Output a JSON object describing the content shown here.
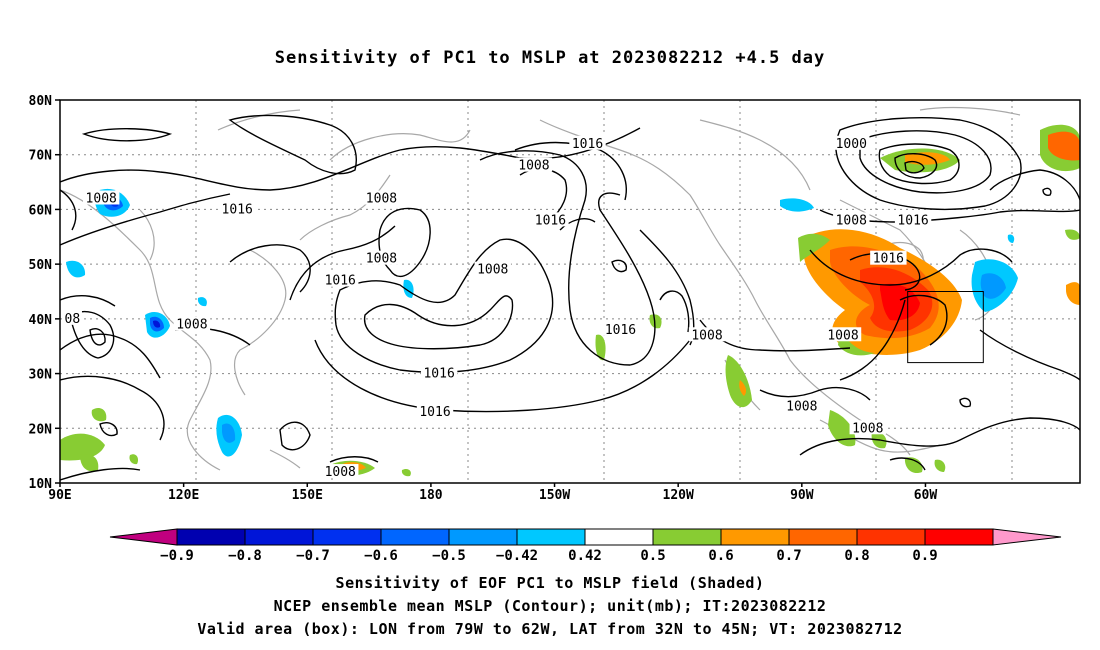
{
  "title": "Sensitivity of PC1 to MSLP at 2023082212 +4.5 day",
  "map": {
    "lat_labels": [
      "80N",
      "70N",
      "60N",
      "50N",
      "40N",
      "30N",
      "20N",
      "10N"
    ],
    "lon_labels": [
      "90E",
      "120E",
      "150E",
      "180",
      "150W",
      "120W",
      "90W",
      "60W"
    ],
    "valid_box": {
      "lon_min": -79,
      "lon_max": -62,
      "lat_min": 32,
      "lat_max": 45
    },
    "contour_labels": [
      {
        "text": "1016",
        "lon": -142,
        "lat": 72
      },
      {
        "text": "1008",
        "lon": -155,
        "lat": 68
      },
      {
        "text": "1000",
        "lon": -78,
        "lat": 72
      },
      {
        "text": "1008",
        "lon": 100,
        "lat": 62
      },
      {
        "text": "1016",
        "lon": 133,
        "lat": 60
      },
      {
        "text": "1008",
        "lon": 168,
        "lat": 62
      },
      {
        "text": "1016",
        "lon": -151,
        "lat": 58
      },
      {
        "text": "1008",
        "lon": -78,
        "lat": 58
      },
      {
        "text": "1016",
        "lon": -63,
        "lat": 58
      },
      {
        "text": "1016",
        "lon": -69,
        "lat": 51
      },
      {
        "text": "1008",
        "lon": 168,
        "lat": 51
      },
      {
        "text": "1008",
        "lon": -165,
        "lat": 49
      },
      {
        "text": "1016",
        "lon": 158,
        "lat": 47
      },
      {
        "text": "08",
        "lon": 93,
        "lat": 40
      },
      {
        "text": "1008",
        "lon": 122,
        "lat": 39
      },
      {
        "text": "1016",
        "lon": -134,
        "lat": 38
      },
      {
        "text": "1008",
        "lon": -113,
        "lat": 37
      },
      {
        "text": "1008",
        "lon": -80,
        "lat": 37
      },
      {
        "text": "1016",
        "lon": -178,
        "lat": 30
      },
      {
        "text": "1016",
        "lon": -179,
        "lat": 23
      },
      {
        "text": "1008",
        "lon": -90,
        "lat": 24
      },
      {
        "text": "1008",
        "lon": -74,
        "lat": 20
      },
      {
        "text": "1008",
        "lon": 158,
        "lat": 12
      }
    ]
  },
  "colorbar": {
    "labels": [
      "-0.9",
      "-0.8",
      "-0.7",
      "-0.6",
      "-0.5",
      "-0.42",
      "0.42",
      "0.5",
      "0.6",
      "0.7",
      "0.8",
      "0.9"
    ],
    "colors": [
      "#c0007f",
      "#0000b0",
      "#0015d8",
      "#0030f0",
      "#0066ff",
      "#0099ff",
      "#00c8ff",
      "#ffffff",
      "#88cc33",
      "#ff9900",
      "#ff6600",
      "#ff3300",
      "#ff0000",
      "#ff99cc"
    ]
  },
  "footer": {
    "line1": "Sensitivity of EOF PC1 to MSLP field (Shaded)",
    "line2": "NCEP ensemble mean MSLP (Contour); unit(mb); IT:2023082212",
    "line3": "Valid area (box): LON from 79W to 62W, LAT from 32N to 45N; VT: 2023082712"
  }
}
